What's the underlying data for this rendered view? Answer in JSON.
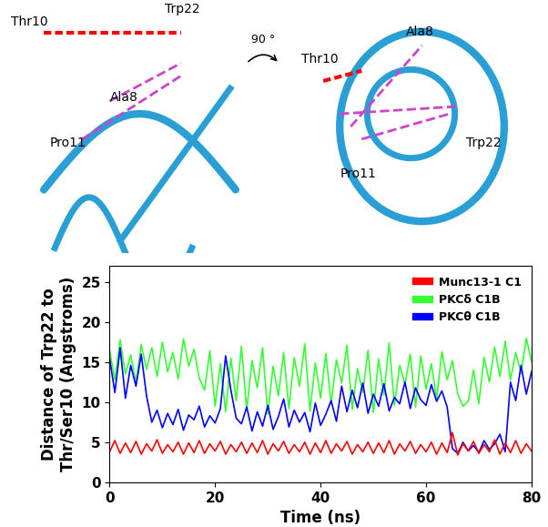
{
  "chart_data": {
    "type": "line",
    "x_label": "Time (ns)",
    "y_label": "Distance of Trp22 to\nThr/Ser10 (Angstroms)",
    "x": [
      0,
      1,
      2,
      3,
      4,
      5,
      6,
      7,
      8,
      9,
      10,
      11,
      12,
      13,
      14,
      15,
      16,
      17,
      18,
      19,
      20,
      21,
      22,
      23,
      24,
      25,
      26,
      27,
      28,
      29,
      30,
      31,
      32,
      33,
      34,
      35,
      36,
      37,
      38,
      39,
      40,
      41,
      42,
      43,
      44,
      45,
      46,
      47,
      48,
      49,
      50,
      51,
      52,
      53,
      54,
      55,
      56,
      57,
      58,
      59,
      60,
      61,
      62,
      63,
      64,
      65,
      66,
      67,
      68,
      69,
      70,
      71,
      72,
      73,
      74,
      75,
      76,
      77,
      78,
      79,
      80
    ],
    "series": [
      {
        "name": "Munc13-1 C1",
        "color": "#ff0000",
        "values": [
          3.8,
          5.2,
          3.6,
          4.9,
          3.7,
          5.1,
          3.5,
          4.8,
          3.9,
          5.3,
          3.6,
          4.7,
          3.8,
          5.0,
          3.5,
          4.9,
          3.7,
          5.2,
          3.6,
          4.8,
          3.9,
          5.1,
          3.5,
          4.7,
          3.8,
          5.0,
          3.6,
          4.9,
          3.7,
          5.2,
          3.5,
          4.8,
          3.9,
          5.1,
          3.6,
          4.7,
          3.8,
          5.0,
          3.5,
          4.9,
          3.7,
          5.2,
          3.6,
          4.8,
          3.9,
          5.1,
          3.5,
          4.7,
          3.8,
          5.0,
          3.6,
          4.9,
          3.7,
          5.2,
          3.5,
          4.8,
          3.9,
          5.1,
          3.6,
          4.7,
          3.8,
          5.0,
          3.5,
          4.9,
          3.7,
          6.2,
          3.4,
          4.8,
          3.9,
          5.1,
          3.6,
          4.7,
          3.8,
          5.3,
          3.5,
          4.9,
          3.7,
          5.2,
          3.6,
          4.8,
          3.9
        ]
      },
      {
        "name": "PKCδ C1B",
        "color": "#33ff33",
        "values": [
          16.5,
          12.8,
          17.8,
          13.5,
          15.9,
          12.5,
          17.2,
          14.1,
          16.8,
          13.2,
          17.5,
          13.8,
          16.2,
          12.9,
          17.9,
          14.5,
          16.6,
          13.0,
          11.5,
          16.4,
          9.5,
          14.8,
          8.8,
          15.5,
          10.2,
          17.0,
          9.0,
          15.2,
          11.8,
          16.8,
          8.5,
          14.5,
          10.8,
          16.2,
          9.2,
          15.6,
          12.0,
          17.3,
          8.9,
          14.9,
          10.5,
          16.1,
          9.8,
          15.3,
          12.4,
          17.1,
          9.1,
          14.2,
          11.2,
          16.5,
          8.7,
          15.4,
          10.9,
          17.4,
          9.6,
          14.6,
          12.2,
          16.0,
          9.4,
          15.8,
          11.6,
          14.8,
          10.4,
          16.3,
          12.8,
          15.2,
          11.0,
          9.5,
          10.1,
          14.0,
          9.8,
          15.6,
          12.5,
          16.9,
          13.2,
          17.6,
          12.8,
          16.2,
          13.6,
          18.0,
          15.1
        ]
      },
      {
        "name": "PKCθ C1B",
        "color": "#0000ff",
        "values": [
          15.5,
          11.2,
          16.8,
          10.5,
          14.6,
          12.0,
          16.0,
          10.8,
          7.5,
          9.0,
          6.8,
          8.6,
          7.2,
          9.1,
          6.5,
          8.4,
          7.8,
          9.5,
          6.9,
          8.3,
          7.4,
          9.2,
          15.8,
          11.5,
          8.0,
          7.3,
          9.4,
          6.4,
          8.8,
          7.0,
          9.6,
          6.6,
          8.2,
          10.4,
          6.9,
          9.0,
          7.5,
          8.7,
          6.3,
          9.9,
          7.1,
          8.5,
          10.2,
          7.6,
          12.0,
          8.8,
          11.5,
          9.3,
          12.4,
          8.6,
          11.0,
          9.5,
          12.3,
          8.9,
          10.6,
          9.8,
          12.5,
          9.2,
          11.8,
          10.3,
          9.6,
          12.2,
          10.1,
          11.4,
          9.4,
          4.2,
          3.6,
          5.0,
          3.9,
          4.6,
          3.7,
          5.2,
          4.1,
          4.8,
          6.0,
          3.8,
          12.5,
          10.2,
          14.6,
          11.0,
          13.8
        ]
      }
    ],
    "xlim": [
      0,
      80
    ],
    "xticks": [
      0,
      20,
      40,
      60,
      80
    ],
    "ylim": [
      0,
      27
    ],
    "yticks": [
      0,
      5,
      10,
      15,
      20,
      25
    ],
    "legend": "upper right",
    "grid": false
  },
  "structure_views": [
    {
      "labels": [
        "Thr10",
        "Trp22",
        "Ala8",
        "Pro11"
      ]
    },
    {
      "rotation": "90 °",
      "labels": [
        "Thr10",
        "Ala8",
        "Pro11",
        "Trp22"
      ]
    }
  ]
}
